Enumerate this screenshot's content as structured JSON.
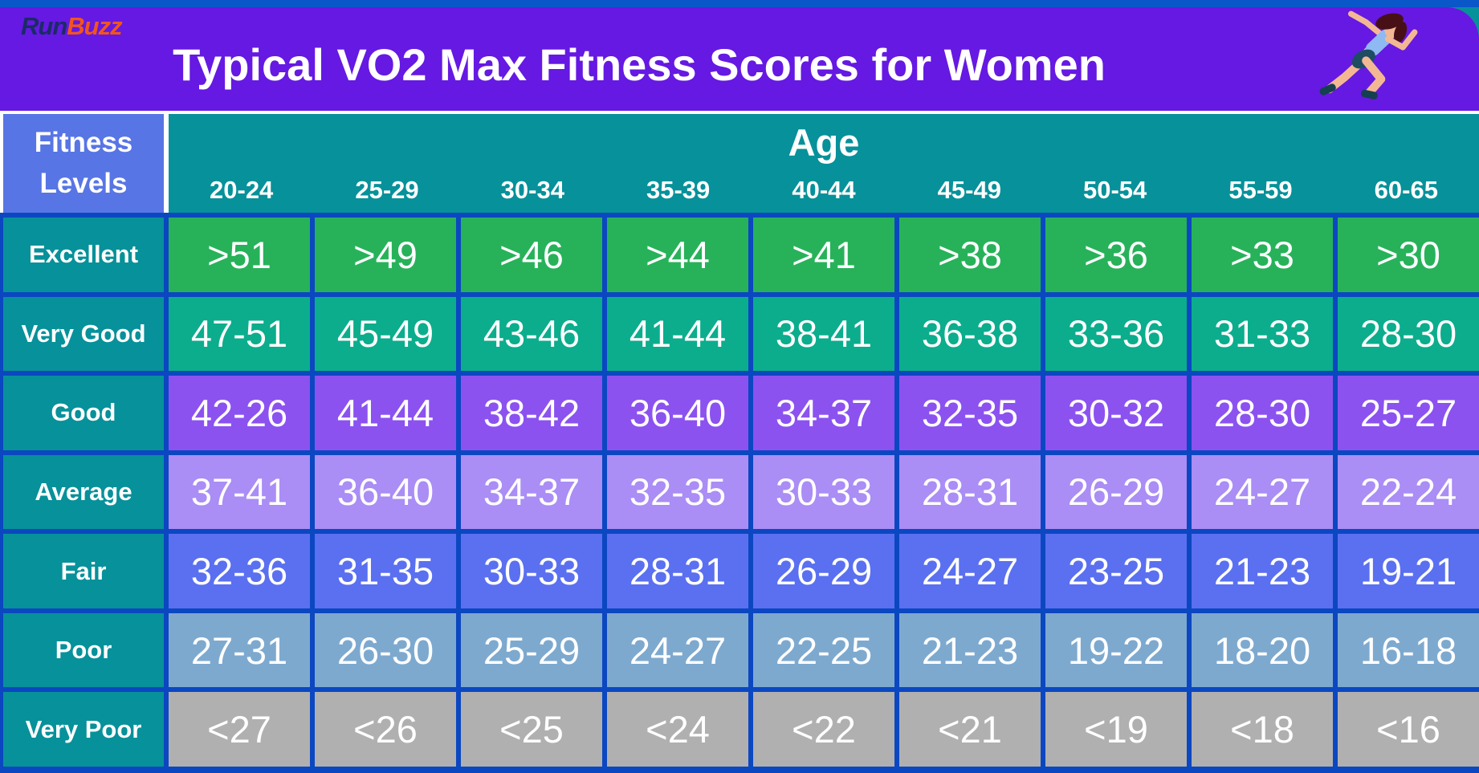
{
  "brand": {
    "run": "Run",
    "buzz": "Buzz"
  },
  "header": {
    "title": "Typical VO2 Max Fitness Scores for Women",
    "runner_icon": "sprinting-woman-icon"
  },
  "colors": {
    "top_bar": "#0957C9",
    "header_band": "#6519E2",
    "table_border": "#0B47C1",
    "teal_header": "#07919A",
    "corner_cell": "#5875E5",
    "brand_run": "#1B2B66",
    "brand_buzz": "#F2551C",
    "excellent": "#27B25A",
    "very_good": "#0BAD8D",
    "good": "#8B52F0",
    "average": "#AA8DF5",
    "fair": "#5A70F0",
    "poor": "#7EA9CF",
    "very_poor": "#B0B0B0"
  },
  "chart_data": {
    "type": "table",
    "title": "Typical VO2 Max Fitness Scores for Women",
    "row_header": "Fitness Levels",
    "column_header": "Age",
    "columns": [
      "20-24",
      "25-29",
      "30-34",
      "35-39",
      "40-44",
      "45-49",
      "50-54",
      "55-59",
      "60-65"
    ],
    "rows": [
      {
        "level": "Excellent",
        "color": "#27B25A",
        "values": [
          ">51",
          ">49",
          ">46",
          ">44",
          ">41",
          ">38",
          ">36",
          ">33",
          ">30"
        ]
      },
      {
        "level": "Very Good",
        "color": "#0BAD8D",
        "values": [
          "47-51",
          "45-49",
          "43-46",
          "41-44",
          "38-41",
          "36-38",
          "33-36",
          "31-33",
          "28-30"
        ]
      },
      {
        "level": "Good",
        "color": "#8B52F0",
        "values": [
          "42-26",
          "41-44",
          "38-42",
          "36-40",
          "34-37",
          "32-35",
          "30-32",
          "28-30",
          "25-27"
        ]
      },
      {
        "level": "Average",
        "color": "#AA8DF5",
        "values": [
          "37-41",
          "36-40",
          "34-37",
          "32-35",
          "30-33",
          "28-31",
          "26-29",
          "24-27",
          "22-24"
        ]
      },
      {
        "level": "Fair",
        "color": "#5A70F0",
        "values": [
          "32-36",
          "31-35",
          "30-33",
          "28-31",
          "26-29",
          "24-27",
          "23-25",
          "21-23",
          "19-21"
        ]
      },
      {
        "level": "Poor",
        "color": "#7EA9CF",
        "values": [
          "27-31",
          "26-30",
          "25-29",
          "24-27",
          "22-25",
          "21-23",
          "19-22",
          "18-20",
          "16-18"
        ]
      },
      {
        "level": "Very Poor",
        "color": "#B0B0B0",
        "values": [
          "<27",
          "<26",
          "<25",
          "<24",
          "<22",
          "<21",
          "<19",
          "<18",
          "<16"
        ]
      }
    ]
  }
}
